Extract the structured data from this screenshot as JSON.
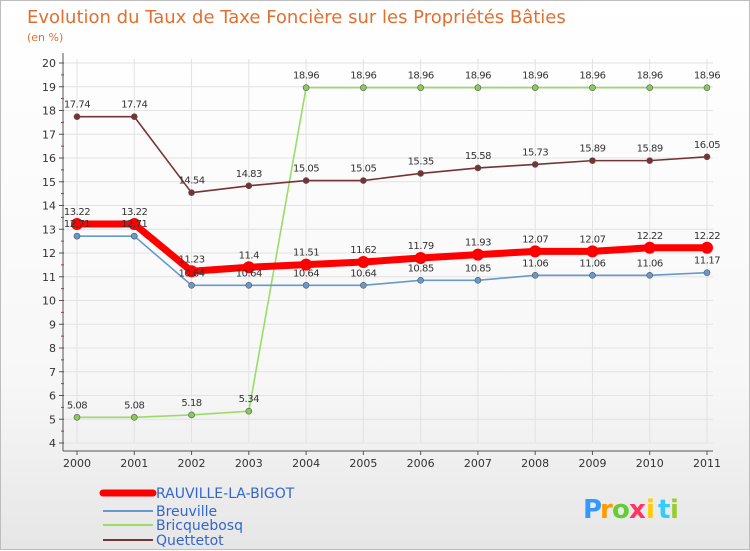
{
  "chart_data": {
    "type": "line",
    "title": "Evolution du Taux de Taxe Foncière sur les Propriétés Bâties",
    "subtitle": "(en %)",
    "xlabel": "",
    "ylabel": "",
    "categories": [
      "2000",
      "2001",
      "2002",
      "2003",
      "2004",
      "2005",
      "2006",
      "2007",
      "2008",
      "2009",
      "2010",
      "2011"
    ],
    "ylim": [
      4,
      20
    ],
    "yticks": [
      "4",
      "5",
      "6",
      "7",
      "8",
      "9",
      "10",
      "11",
      "12",
      "13",
      "14",
      "15",
      "16",
      "17",
      "18",
      "19",
      "20"
    ],
    "legend_position": "bottom-left",
    "series": [
      {
        "name": "RAUVILLE-LA-BIGOT",
        "color": "#ff0000",
        "values": [
          13.22,
          13.22,
          11.23,
          11.4,
          11.51,
          11.62,
          11.79,
          11.93,
          12.07,
          12.07,
          12.22,
          12.22
        ],
        "labels": [
          "13.22",
          "13.22",
          "11.23",
          "11.4",
          "11.51",
          "11.62",
          "11.79",
          "11.93",
          "12.07",
          "12.07",
          "12.22",
          "12.22"
        ]
      },
      {
        "name": "Breuville",
        "color": "#6699cc",
        "values": [
          12.71,
          12.71,
          10.64,
          10.64,
          10.64,
          10.64,
          10.85,
          10.85,
          11.06,
          11.06,
          11.06,
          11.17
        ],
        "labels": [
          "12.71",
          "12.71",
          "10.64",
          "10.64",
          "10.64",
          "10.64",
          "10.85",
          "10.85",
          "11.06",
          "11.06",
          "11.06",
          "11.17"
        ]
      },
      {
        "name": "Bricquebosq",
        "color": "#99dd66",
        "values": [
          5.08,
          5.08,
          5.18,
          5.34,
          18.96,
          18.96,
          18.96,
          18.96,
          18.96,
          18.96,
          18.96,
          18.96
        ],
        "labels": [
          "5.08",
          "5.08",
          "5.18",
          "5.34",
          "18.96",
          "18.96",
          "18.96",
          "18.96",
          "18.96",
          "18.96",
          "18.96",
          "18.96"
        ]
      },
      {
        "name": "Quettetot",
        "color": "#773333",
        "values": [
          17.74,
          17.74,
          14.54,
          14.83,
          15.05,
          15.05,
          15.35,
          15.58,
          15.73,
          15.89,
          15.89,
          16.05
        ],
        "labels": [
          "17.74",
          "17.74",
          "14.54",
          "14.83",
          "15.05",
          "15.05",
          "15.35",
          "15.58",
          "15.73",
          "15.89",
          "15.89",
          "16.05"
        ]
      }
    ]
  },
  "logo": {
    "letters": [
      "P",
      "r",
      "o",
      "x",
      "i",
      "t",
      "i"
    ],
    "colors": [
      "#3399ff",
      "#ff9900",
      "#66cc33",
      "#ff3366",
      "#ffcc00",
      "#33ccff",
      "#99cc33"
    ]
  }
}
